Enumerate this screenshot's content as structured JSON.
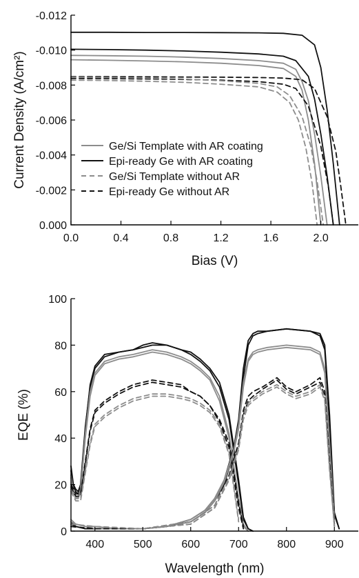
{
  "chart_data": [
    {
      "type": "line",
      "xlabel": "Bias (V)",
      "ylabel": "Current Density (A/cm²)",
      "xlim": [
        0.0,
        2.3
      ],
      "ylim": [
        0.0,
        -0.012
      ],
      "x_ticks": [
        "0.0",
        "0.4",
        "0.8",
        "1.2",
        "1.6",
        "2.0"
      ],
      "y_ticks": [
        "0.000",
        "-0.002",
        "-0.004",
        "-0.006",
        "-0.008",
        "-0.010",
        "-0.012"
      ],
      "legend_position": "bottom-left",
      "legend": [
        {
          "label": "Ge/Si Template with AR coating",
          "color": "#8c8c8c",
          "dash": "solid"
        },
        {
          "label": "Epi-ready Ge with AR coating",
          "color": "#111111",
          "dash": "solid"
        },
        {
          "label": "Ge/Si Template without AR",
          "color": "#8c8c8c",
          "dash": "dashed"
        },
        {
          "label": "Epi-ready Ge without AR",
          "color": "#111111",
          "dash": "dashed"
        }
      ],
      "series": [
        {
          "color": "#111111",
          "dash": "solid",
          "x": [
            0,
            0.3,
            0.6,
            0.9,
            1.2,
            1.5,
            1.7,
            1.85,
            1.95,
            2.0,
            2.05,
            2.1,
            2.15
          ],
          "y": [
            -0.01102,
            -0.01102,
            -0.01101,
            -0.01101,
            -0.011,
            -0.01099,
            -0.01096,
            -0.01085,
            -0.0103,
            -0.009,
            -0.0066,
            -0.0035,
            0
          ]
        },
        {
          "color": "#111111",
          "dash": "solid",
          "x": [
            0,
            0.3,
            0.6,
            0.9,
            1.2,
            1.5,
            1.7,
            1.8,
            1.9,
            1.95,
            2.0,
            2.05,
            2.1
          ],
          "y": [
            -0.01005,
            -0.01003,
            -0.01,
            -0.00995,
            -0.00988,
            -0.00978,
            -0.00965,
            -0.0094,
            -0.0085,
            -0.0072,
            -0.0052,
            -0.0028,
            0
          ]
        },
        {
          "color": "#8c8c8c",
          "dash": "solid",
          "x": [
            0,
            0.3,
            0.6,
            0.9,
            1.2,
            1.5,
            1.7,
            1.8,
            1.85,
            1.9,
            1.95,
            2.0,
            2.05
          ],
          "y": [
            -0.0097,
            -0.00968,
            -0.00965,
            -0.0096,
            -0.00952,
            -0.0094,
            -0.00925,
            -0.0089,
            -0.0082,
            -0.0071,
            -0.0052,
            -0.0028,
            0
          ]
        },
        {
          "color": "#8c8c8c",
          "dash": "solid",
          "x": [
            0,
            0.3,
            0.6,
            0.9,
            1.2,
            1.5,
            1.7,
            1.8,
            1.85,
            1.9,
            1.95,
            2.0
          ],
          "y": [
            -0.00945,
            -0.00942,
            -0.00938,
            -0.00933,
            -0.00925,
            -0.00912,
            -0.00895,
            -0.0085,
            -0.0077,
            -0.006,
            -0.0035,
            0
          ]
        },
        {
          "color": "#111111",
          "dash": "dashed",
          "x": [
            0,
            0.3,
            0.6,
            0.9,
            1.2,
            1.5,
            1.7,
            1.85,
            1.95,
            2.05,
            2.12,
            2.16,
            2.2
          ],
          "y": [
            -0.00848,
            -0.00848,
            -0.00847,
            -0.00846,
            -0.00845,
            -0.00843,
            -0.0084,
            -0.0083,
            -0.0078,
            -0.0062,
            -0.0042,
            -0.0022,
            0
          ]
        },
        {
          "color": "#111111",
          "dash": "dashed",
          "x": [
            0,
            0.3,
            0.6,
            0.9,
            1.2,
            1.5,
            1.7,
            1.8,
            1.9,
            2.0,
            2.06,
            2.1
          ],
          "y": [
            -0.00838,
            -0.00837,
            -0.00835,
            -0.00832,
            -0.00828,
            -0.0082,
            -0.00805,
            -0.0078,
            -0.0068,
            -0.0045,
            -0.0022,
            0
          ]
        },
        {
          "color": "#8c8c8c",
          "dash": "dashed",
          "x": [
            0,
            0.3,
            0.6,
            0.9,
            1.2,
            1.5,
            1.65,
            1.75,
            1.85,
            1.92,
            1.97,
            2.02
          ],
          "y": [
            -0.00845,
            -0.00843,
            -0.0084,
            -0.00835,
            -0.00825,
            -0.0081,
            -0.0079,
            -0.0074,
            -0.0062,
            -0.0045,
            -0.0025,
            0
          ]
        },
        {
          "color": "#8c8c8c",
          "dash": "dashed",
          "x": [
            0,
            0.3,
            0.6,
            0.9,
            1.2,
            1.5,
            1.65,
            1.75,
            1.82,
            1.88,
            1.93,
            1.97
          ],
          "y": [
            -0.00828,
            -0.00826,
            -0.00822,
            -0.00816,
            -0.00805,
            -0.0079,
            -0.0076,
            -0.007,
            -0.006,
            -0.0044,
            -0.0024,
            0
          ]
        }
      ]
    },
    {
      "type": "line",
      "xlabel": "Wavelength (nm)",
      "ylabel": "EQE (%)",
      "xlim": [
        350,
        950
      ],
      "ylim": [
        0,
        100
      ],
      "x_ticks": [
        "400",
        "500",
        "600",
        "700",
        "800",
        "900"
      ],
      "y_ticks": [
        "0",
        "20",
        "40",
        "60",
        "80",
        "100"
      ],
      "series": [
        {
          "color": "#111111",
          "dash": "solid",
          "x": [
            350,
            355,
            360,
            365,
            370,
            380,
            390,
            400,
            420,
            450,
            480,
            500,
            520,
            550,
            580,
            600,
            620,
            640,
            660,
            680,
            700,
            710,
            720,
            730
          ],
          "y": [
            28,
            20,
            18,
            17,
            20,
            45,
            62,
            70,
            75,
            77,
            78,
            79,
            80,
            80,
            78,
            76,
            73,
            69,
            62,
            48,
            20,
            5,
            1,
            0
          ]
        },
        {
          "color": "#111111",
          "dash": "solid",
          "x": [
            350,
            355,
            360,
            365,
            370,
            380,
            390,
            400,
            420,
            450,
            480,
            500,
            520,
            550,
            580,
            600,
            620,
            640,
            660,
            680,
            700,
            710,
            720,
            730
          ],
          "y": [
            26,
            19,
            17,
            16,
            19,
            44,
            63,
            71,
            76,
            77,
            78,
            80,
            81,
            80,
            78,
            77,
            74,
            70,
            64,
            50,
            22,
            6,
            1,
            0
          ]
        },
        {
          "color": "#8c8c8c",
          "dash": "solid",
          "x": [
            350,
            355,
            360,
            365,
            370,
            380,
            390,
            400,
            420,
            450,
            480,
            500,
            520,
            550,
            580,
            600,
            620,
            640,
            660,
            680,
            700,
            710,
            720
          ],
          "y": [
            24,
            17,
            15,
            15,
            18,
            42,
            60,
            68,
            73,
            75,
            76,
            77,
            78,
            77,
            75,
            73,
            70,
            66,
            58,
            42,
            14,
            3,
            0
          ]
        },
        {
          "color": "#8c8c8c",
          "dash": "solid",
          "x": [
            350,
            355,
            360,
            365,
            370,
            380,
            390,
            400,
            420,
            450,
            480,
            500,
            520,
            550,
            580,
            600,
            620,
            640,
            660,
            680,
            700,
            710,
            720
          ],
          "y": [
            23,
            16,
            15,
            14,
            17,
            40,
            58,
            67,
            72,
            74,
            75,
            76,
            77,
            76,
            74,
            72,
            69,
            65,
            56,
            40,
            12,
            2,
            0
          ]
        },
        {
          "color": "#111111",
          "dash": "dashed",
          "x": [
            350,
            360,
            370,
            380,
            390,
            400,
            420,
            450,
            480,
            500,
            520,
            550,
            580,
            600,
            620,
            640,
            660,
            680,
            700,
            710
          ],
          "y": [
            20,
            16,
            16,
            30,
            44,
            52,
            56,
            60,
            63,
            64,
            65,
            64,
            63,
            60,
            58,
            54,
            48,
            38,
            12,
            2
          ]
        },
        {
          "color": "#111111",
          "dash": "dashed",
          "x": [
            350,
            360,
            370,
            380,
            390,
            400,
            420,
            450,
            480,
            500,
            520,
            550,
            580,
            600,
            620,
            640,
            660,
            680,
            700,
            710
          ],
          "y": [
            19,
            15,
            15,
            29,
            43,
            51,
            55,
            59,
            62,
            63,
            64,
            63,
            62,
            60,
            58,
            54,
            47,
            36,
            10,
            1
          ]
        },
        {
          "color": "#8c8c8c",
          "dash": "dashed",
          "x": [
            350,
            360,
            370,
            380,
            390,
            400,
            420,
            450,
            480,
            500,
            520,
            550,
            580,
            600,
            620,
            640,
            660,
            680,
            700
          ],
          "y": [
            18,
            14,
            14,
            26,
            38,
            46,
            50,
            54,
            57,
            58,
            59,
            59,
            58,
            57,
            55,
            52,
            46,
            34,
            5
          ]
        },
        {
          "color": "#8c8c8c",
          "dash": "dashed",
          "x": [
            350,
            360,
            370,
            380,
            390,
            400,
            420,
            450,
            480,
            500,
            520,
            550,
            580,
            600,
            620,
            640,
            660,
            680,
            700
          ],
          "y": [
            17,
            13,
            13,
            25,
            37,
            45,
            49,
            53,
            56,
            57,
            58,
            58,
            57,
            56,
            54,
            51,
            45,
            33,
            4
          ]
        },
        {
          "color": "#111111",
          "dash": "solid",
          "x": [
            350,
            360,
            380,
            400,
            450,
            500,
            550,
            600,
            630,
            650,
            670,
            690,
            700,
            710,
            720,
            730,
            740,
            760,
            800,
            850,
            870,
            880,
            890,
            900,
            910
          ],
          "y": [
            4,
            2,
            1,
            1,
            1,
            1,
            2,
            5,
            9,
            14,
            22,
            36,
            48,
            70,
            82,
            85,
            86,
            86,
            87,
            86,
            85,
            80,
            50,
            8,
            1
          ]
        },
        {
          "color": "#111111",
          "dash": "solid",
          "x": [
            350,
            360,
            380,
            400,
            450,
            500,
            550,
            600,
            630,
            650,
            670,
            690,
            700,
            710,
            720,
            730,
            740,
            760,
            800,
            850,
            870,
            880,
            890,
            900,
            910
          ],
          "y": [
            3,
            2,
            1,
            1,
            1,
            1,
            2,
            4,
            8,
            13,
            20,
            34,
            46,
            66,
            80,
            84,
            85,
            86,
            87,
            86,
            84,
            78,
            46,
            7,
            1
          ]
        },
        {
          "color": "#8c8c8c",
          "dash": "solid",
          "x": [
            350,
            360,
            380,
            400,
            450,
            500,
            550,
            600,
            630,
            650,
            670,
            690,
            700,
            710,
            720,
            730,
            740,
            760,
            800,
            850,
            870,
            880,
            890,
            900
          ],
          "y": [
            5,
            3,
            2,
            2,
            1,
            1,
            2,
            5,
            9,
            14,
            22,
            35,
            46,
            64,
            74,
            77,
            78,
            79,
            80,
            79,
            77,
            70,
            38,
            5
          ]
        },
        {
          "color": "#8c8c8c",
          "dash": "solid",
          "x": [
            350,
            360,
            380,
            400,
            450,
            500,
            550,
            600,
            630,
            650,
            670,
            690,
            700,
            710,
            720,
            730,
            740,
            760,
            800,
            850,
            870,
            880,
            890,
            900
          ],
          "y": [
            4,
            3,
            2,
            1,
            1,
            1,
            2,
            4,
            8,
            13,
            21,
            34,
            44,
            62,
            73,
            76,
            77,
            78,
            79,
            78,
            76,
            68,
            35,
            4
          ]
        },
        {
          "color": "#111111",
          "dash": "dashed",
          "x": [
            350,
            400,
            500,
            600,
            650,
            680,
            700,
            710,
            720,
            730,
            750,
            780,
            800,
            820,
            850,
            870,
            880,
            890,
            900
          ],
          "y": [
            2,
            1,
            1,
            4,
            11,
            24,
            38,
            52,
            58,
            60,
            62,
            66,
            62,
            60,
            63,
            66,
            60,
            30,
            3
          ]
        },
        {
          "color": "#111111",
          "dash": "dashed",
          "x": [
            350,
            400,
            500,
            600,
            650,
            680,
            700,
            710,
            720,
            730,
            750,
            780,
            800,
            820,
            850,
            870,
            880,
            890,
            900
          ],
          "y": [
            2,
            1,
            1,
            3,
            10,
            22,
            36,
            50,
            56,
            58,
            61,
            65,
            61,
            59,
            62,
            64,
            58,
            28,
            2
          ]
        },
        {
          "color": "#8c8c8c",
          "dash": "dashed",
          "x": [
            350,
            400,
            500,
            600,
            650,
            680,
            700,
            710,
            720,
            730,
            750,
            780,
            800,
            820,
            850,
            870,
            880,
            890,
            900
          ],
          "y": [
            3,
            2,
            1,
            4,
            11,
            23,
            36,
            50,
            55,
            57,
            60,
            63,
            60,
            58,
            60,
            63,
            57,
            27,
            2
          ]
        },
        {
          "color": "#8c8c8c",
          "dash": "dashed",
          "x": [
            350,
            400,
            500,
            600,
            650,
            680,
            700,
            710,
            720,
            730,
            750,
            780,
            800,
            820,
            850,
            870,
            880,
            890,
            900
          ],
          "y": [
            3,
            2,
            1,
            3,
            10,
            22,
            35,
            48,
            54,
            56,
            59,
            62,
            59,
            57,
            59,
            62,
            56,
            26,
            2
          ]
        }
      ]
    }
  ]
}
